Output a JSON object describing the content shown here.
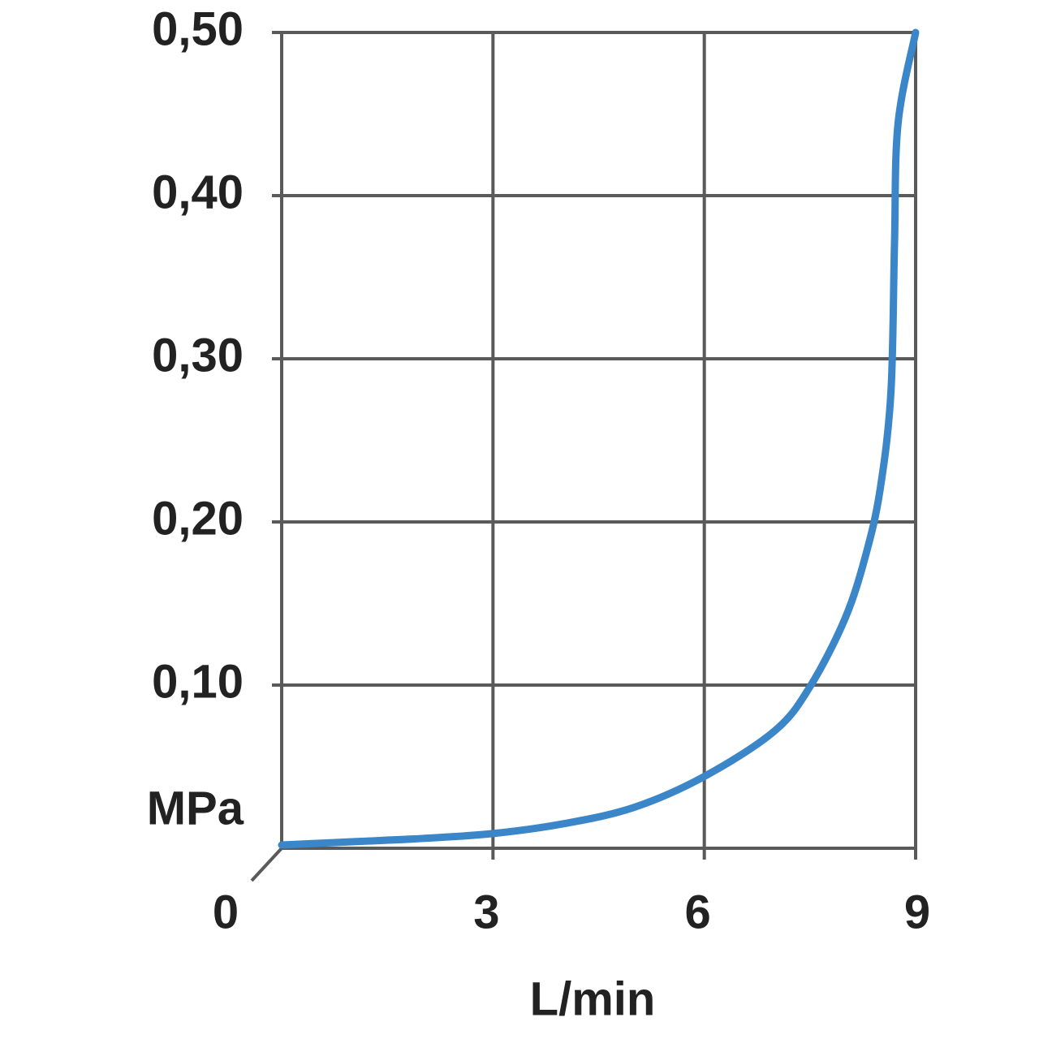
{
  "chart_data": {
    "type": "line",
    "x_label": "L/min",
    "y_label": "MPa",
    "x": [
      0,
      1,
      2,
      3,
      4,
      5,
      6,
      7,
      7.5,
      8,
      8.3,
      8.5,
      8.65,
      8.7,
      8.75,
      9
    ],
    "series": [
      {
        "color": "#3a86c8",
        "values": [
          0.002,
          0.004,
          0.006,
          0.009,
          0.015,
          0.025,
          0.044,
          0.072,
          0.099,
          0.141,
          0.181,
          0.221,
          0.28,
          0.37,
          0.444,
          0.5
        ]
      }
    ],
    "xlim": [
      0,
      9
    ],
    "xticks": [
      0,
      3,
      6,
      9
    ],
    "ylim": [
      0,
      0.5
    ],
    "yticks": [
      {
        "value": 0.1,
        "label": "0,10"
      },
      {
        "value": 0.2,
        "label": "0,20"
      },
      {
        "value": 0.3,
        "label": "0,30"
      },
      {
        "value": 0.4,
        "label": "0,40"
      },
      {
        "value": 0.5,
        "label": "0,50"
      }
    ],
    "grid": true
  }
}
